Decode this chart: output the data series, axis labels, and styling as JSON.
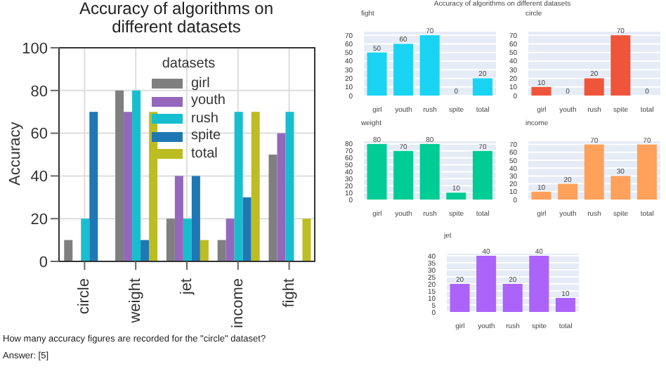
{
  "chart_data": [
    {
      "type": "bar",
      "title": "Accuracy of algorithms on different datasets",
      "ylabel": "Accuracy",
      "legend_title": "datasets",
      "categories": [
        "circle",
        "weight",
        "jet",
        "income",
        "fight"
      ],
      "series": [
        {
          "name": "girl",
          "color": "#7f7f7f",
          "values": [
            10,
            80,
            20,
            10,
            50
          ]
        },
        {
          "name": "youth",
          "color": "#9467bd",
          "values": [
            0,
            70,
            40,
            20,
            60
          ]
        },
        {
          "name": "rush",
          "color": "#17becf",
          "values": [
            20,
            80,
            20,
            70,
            70
          ]
        },
        {
          "name": "spite",
          "color": "#1f77b4",
          "values": [
            70,
            10,
            40,
            30,
            0
          ]
        },
        {
          "name": "total",
          "color": "#bcbd22",
          "values": [
            0,
            70,
            10,
            70,
            20
          ]
        }
      ],
      "ylim": [
        0,
        100
      ],
      "yticks": [
        0,
        20,
        40,
        60,
        80,
        100
      ],
      "grid": true,
      "legend": "top",
      "annotations": [
        "How many accuracy figures are recorded for the \"circle\" dataset?",
        "Answer: [5]"
      ]
    },
    {
      "type": "bar",
      "annotations": [
        "Accuracy of algorithms on different datasets"
      ],
      "subtitle": "fight",
      "categories": [
        "girl",
        "youth",
        "rush",
        "spite",
        "total"
      ],
      "values": [
        50,
        60,
        70,
        0,
        20
      ],
      "color": "#19d3f3",
      "ylim": [
        0,
        75
      ],
      "yticks": [
        0,
        10,
        20,
        30,
        40,
        50,
        60,
        70
      ],
      "grid": "y",
      "data_labels": true
    },
    {
      "type": "bar",
      "subtitle": "circle",
      "categories": [
        "girl",
        "youth",
        "rush",
        "spite",
        "total"
      ],
      "values": [
        10,
        0,
        20,
        70,
        0
      ],
      "color": "#ef553b",
      "ylim": [
        0,
        75
      ],
      "yticks": [
        0,
        10,
        20,
        30,
        40,
        50,
        60,
        70
      ],
      "grid": "y",
      "data_labels": true
    },
    {
      "type": "bar",
      "subtitle": "weight",
      "categories": [
        "girl",
        "youth",
        "rush",
        "spite",
        "total"
      ],
      "values": [
        80,
        70,
        80,
        10,
        70
      ],
      "color": "#00cc96",
      "ylim": [
        0,
        85
      ],
      "yticks": [
        0,
        10,
        20,
        30,
        40,
        50,
        60,
        70,
        80
      ],
      "grid": "y",
      "data_labels": true
    },
    {
      "type": "bar",
      "subtitle": "income",
      "categories": [
        "girl",
        "youth",
        "rush",
        "spite",
        "total"
      ],
      "values": [
        10,
        20,
        70,
        30,
        70
      ],
      "color": "#ffa15a",
      "ylim": [
        0,
        75
      ],
      "yticks": [
        0,
        10,
        20,
        30,
        40,
        50,
        60,
        70
      ],
      "grid": "y",
      "data_labels": true
    },
    {
      "type": "bar",
      "subtitle": "jet",
      "categories": [
        "girl",
        "youth",
        "rush",
        "spite",
        "total"
      ],
      "values": [
        20,
        40,
        20,
        40,
        10
      ],
      "color": "#ab63fa",
      "ylim": [
        0,
        42
      ],
      "yticks": [
        0,
        5,
        10,
        15,
        20,
        25,
        30,
        35,
        40
      ],
      "grid": "y",
      "data_labels": true
    }
  ]
}
